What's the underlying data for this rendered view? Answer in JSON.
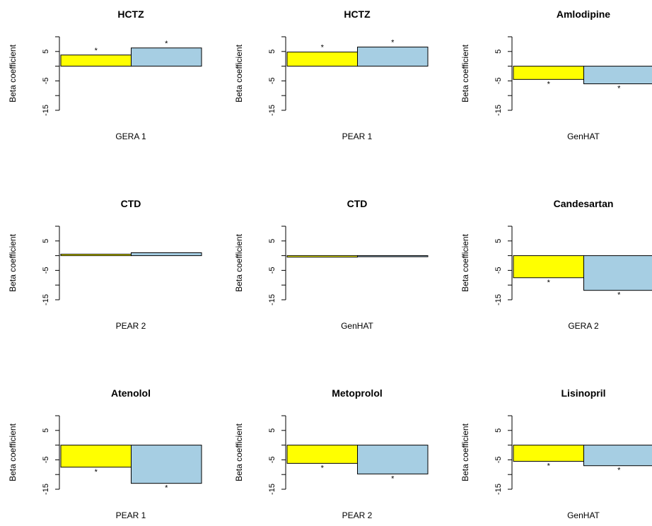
{
  "colors": {
    "series1": "#ffff00",
    "series2": "#a6cee3",
    "axis": "#000000"
  },
  "chart_data": [
    {
      "type": "bar",
      "title": "HCTZ",
      "xlabel": "GERA 1",
      "ylabel": "Beta coefficient",
      "ylim": [
        -15,
        10
      ],
      "yticks": [
        5,
        -5,
        -15
      ],
      "series": [
        {
          "values": [
            3.8
          ]
        },
        {
          "values": [
            6.2
          ]
        }
      ],
      "annotations": [
        "*",
        "*"
      ]
    },
    {
      "type": "bar",
      "title": "HCTZ",
      "xlabel": "PEAR 1",
      "ylabel": "Beta coefficient",
      "ylim": [
        -15,
        10
      ],
      "yticks": [
        5,
        -5,
        -15
      ],
      "series": [
        {
          "values": [
            4.8
          ]
        },
        {
          "values": [
            6.5
          ]
        }
      ],
      "annotations": [
        "*",
        "*"
      ]
    },
    {
      "type": "bar",
      "title": "Amlodipine",
      "xlabel": "GenHAT",
      "ylabel": "Beta coefficient",
      "ylim": [
        -15,
        10
      ],
      "yticks": [
        5,
        -5,
        -15
      ],
      "series": [
        {
          "values": [
            -4.5
          ]
        },
        {
          "values": [
            -6.0
          ]
        }
      ],
      "annotations": [
        "*",
        "*"
      ]
    },
    {
      "type": "bar",
      "title": "CTD",
      "xlabel": "PEAR 2",
      "ylabel": "Beta coefficient",
      "ylim": [
        -15,
        10
      ],
      "yticks": [
        5,
        -5,
        -15
      ],
      "series": [
        {
          "values": [
            0.5
          ]
        },
        {
          "values": [
            1.0
          ]
        }
      ],
      "annotations": []
    },
    {
      "type": "bar",
      "title": "CTD",
      "xlabel": "GenHAT",
      "ylabel": "Beta coefficient",
      "ylim": [
        -15,
        10
      ],
      "yticks": [
        5,
        -5,
        -15
      ],
      "series": [
        {
          "values": [
            -0.5
          ]
        },
        {
          "values": [
            0.0
          ]
        }
      ],
      "annotations": []
    },
    {
      "type": "bar",
      "title": "Candesartan",
      "xlabel": "GERA 2",
      "ylabel": "Beta coefficient",
      "ylim": [
        -15,
        10
      ],
      "yticks": [
        5,
        -5,
        -15
      ],
      "series": [
        {
          "values": [
            -7.5
          ]
        },
        {
          "values": [
            -11.8
          ]
        }
      ],
      "annotations": [
        "*",
        "*"
      ]
    },
    {
      "type": "bar",
      "title": "Atenolol",
      "xlabel": "PEAR 1",
      "ylabel": "Beta coefficient",
      "ylim": [
        -15,
        10
      ],
      "yticks": [
        5,
        -5,
        -15
      ],
      "series": [
        {
          "values": [
            -7.5
          ]
        },
        {
          "values": [
            -13.0
          ]
        }
      ],
      "annotations": [
        "*",
        "*"
      ]
    },
    {
      "type": "bar",
      "title": "Metoprolol",
      "xlabel": "PEAR 2",
      "ylabel": "Beta coefficient",
      "ylim": [
        -15,
        10
      ],
      "yticks": [
        5,
        -5,
        -15
      ],
      "series": [
        {
          "values": [
            -6.2
          ]
        },
        {
          "values": [
            -9.8
          ]
        }
      ],
      "annotations": [
        "*",
        "*"
      ]
    },
    {
      "type": "bar",
      "title": "Lisinopril",
      "xlabel": "GenHAT",
      "ylabel": "Beta coefficient",
      "ylim": [
        -15,
        10
      ],
      "yticks": [
        5,
        -5,
        -15
      ],
      "series": [
        {
          "values": [
            -5.5
          ]
        },
        {
          "values": [
            -7.0
          ]
        }
      ],
      "annotations": [
        "*",
        "*"
      ]
    }
  ]
}
